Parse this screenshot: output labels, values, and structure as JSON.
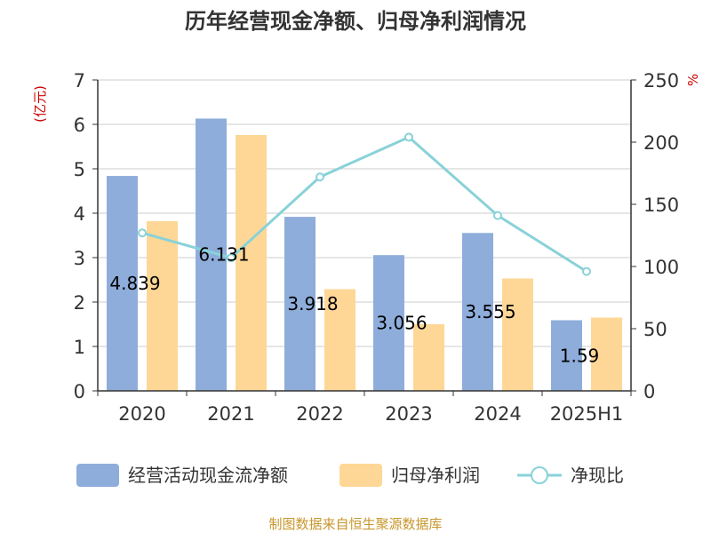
{
  "chart_data": {
    "type": "bar",
    "title": "历年经营现金净额、归母净利润情况",
    "categories": [
      "2020",
      "2021",
      "2022",
      "2023",
      "2024",
      "2025H1"
    ],
    "series": [
      {
        "name": "经营活动现金流净额",
        "type": "bar",
        "axis": "left",
        "color": "#8eaddb",
        "values": [
          4.839,
          6.131,
          3.918,
          3.056,
          3.555,
          1.59
        ],
        "labels": [
          "4.839",
          "6.131",
          "3.918",
          "3.056",
          "3.555",
          "1.59"
        ]
      },
      {
        "name": "归母净利润",
        "type": "bar",
        "axis": "left",
        "color": "#fed796",
        "values": [
          3.82,
          5.76,
          2.29,
          1.5,
          2.53,
          1.65
        ]
      },
      {
        "name": "净现比",
        "type": "line",
        "axis": "right",
        "color": "#88d2d8",
        "values": [
          127,
          107,
          172,
          204,
          141,
          96
        ]
      }
    ],
    "y_left": {
      "unit": "(亿元)",
      "min": 0,
      "max": 7,
      "ticks": [
        "0",
        "1",
        "2",
        "3",
        "4",
        "5",
        "6",
        "7"
      ]
    },
    "y_right": {
      "unit": "%",
      "min": 0,
      "max": 250,
      "ticks": [
        "0",
        "50",
        "100",
        "150",
        "200",
        "250"
      ]
    },
    "grid": true,
    "legend_position": "bottom",
    "source": "制图数据来自恒生聚源数据库"
  }
}
